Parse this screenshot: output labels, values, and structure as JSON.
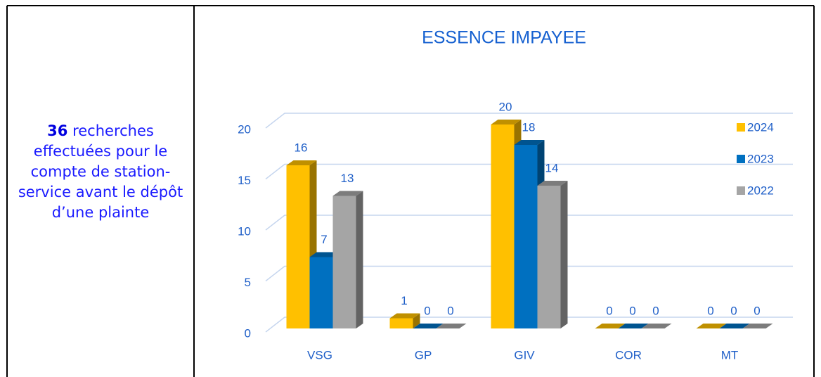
{
  "note": {
    "count": "36",
    "text": "recherches effectuées pour le compte de station-service avant le dépôt d’une plainte"
  },
  "chart_data": {
    "type": "bar3d",
    "title": "ESSENCE IMPAYEE",
    "categories": [
      "VSG",
      "GP",
      "GIV",
      "COR",
      "MT"
    ],
    "series": [
      {
        "name": "2024",
        "color": "#FFC000",
        "values": [
          16,
          1,
          20,
          0,
          0
        ]
      },
      {
        "name": "2023",
        "color": "#0070C0",
        "values": [
          7,
          0,
          18,
          0,
          0
        ]
      },
      {
        "name": "2022",
        "color": "#A5A5A5",
        "values": [
          13,
          0,
          14,
          0,
          0
        ]
      }
    ],
    "ylim": [
      0,
      20
    ],
    "yticks": [
      0,
      5,
      10,
      15,
      20
    ],
    "grid": true,
    "legend": "right"
  }
}
